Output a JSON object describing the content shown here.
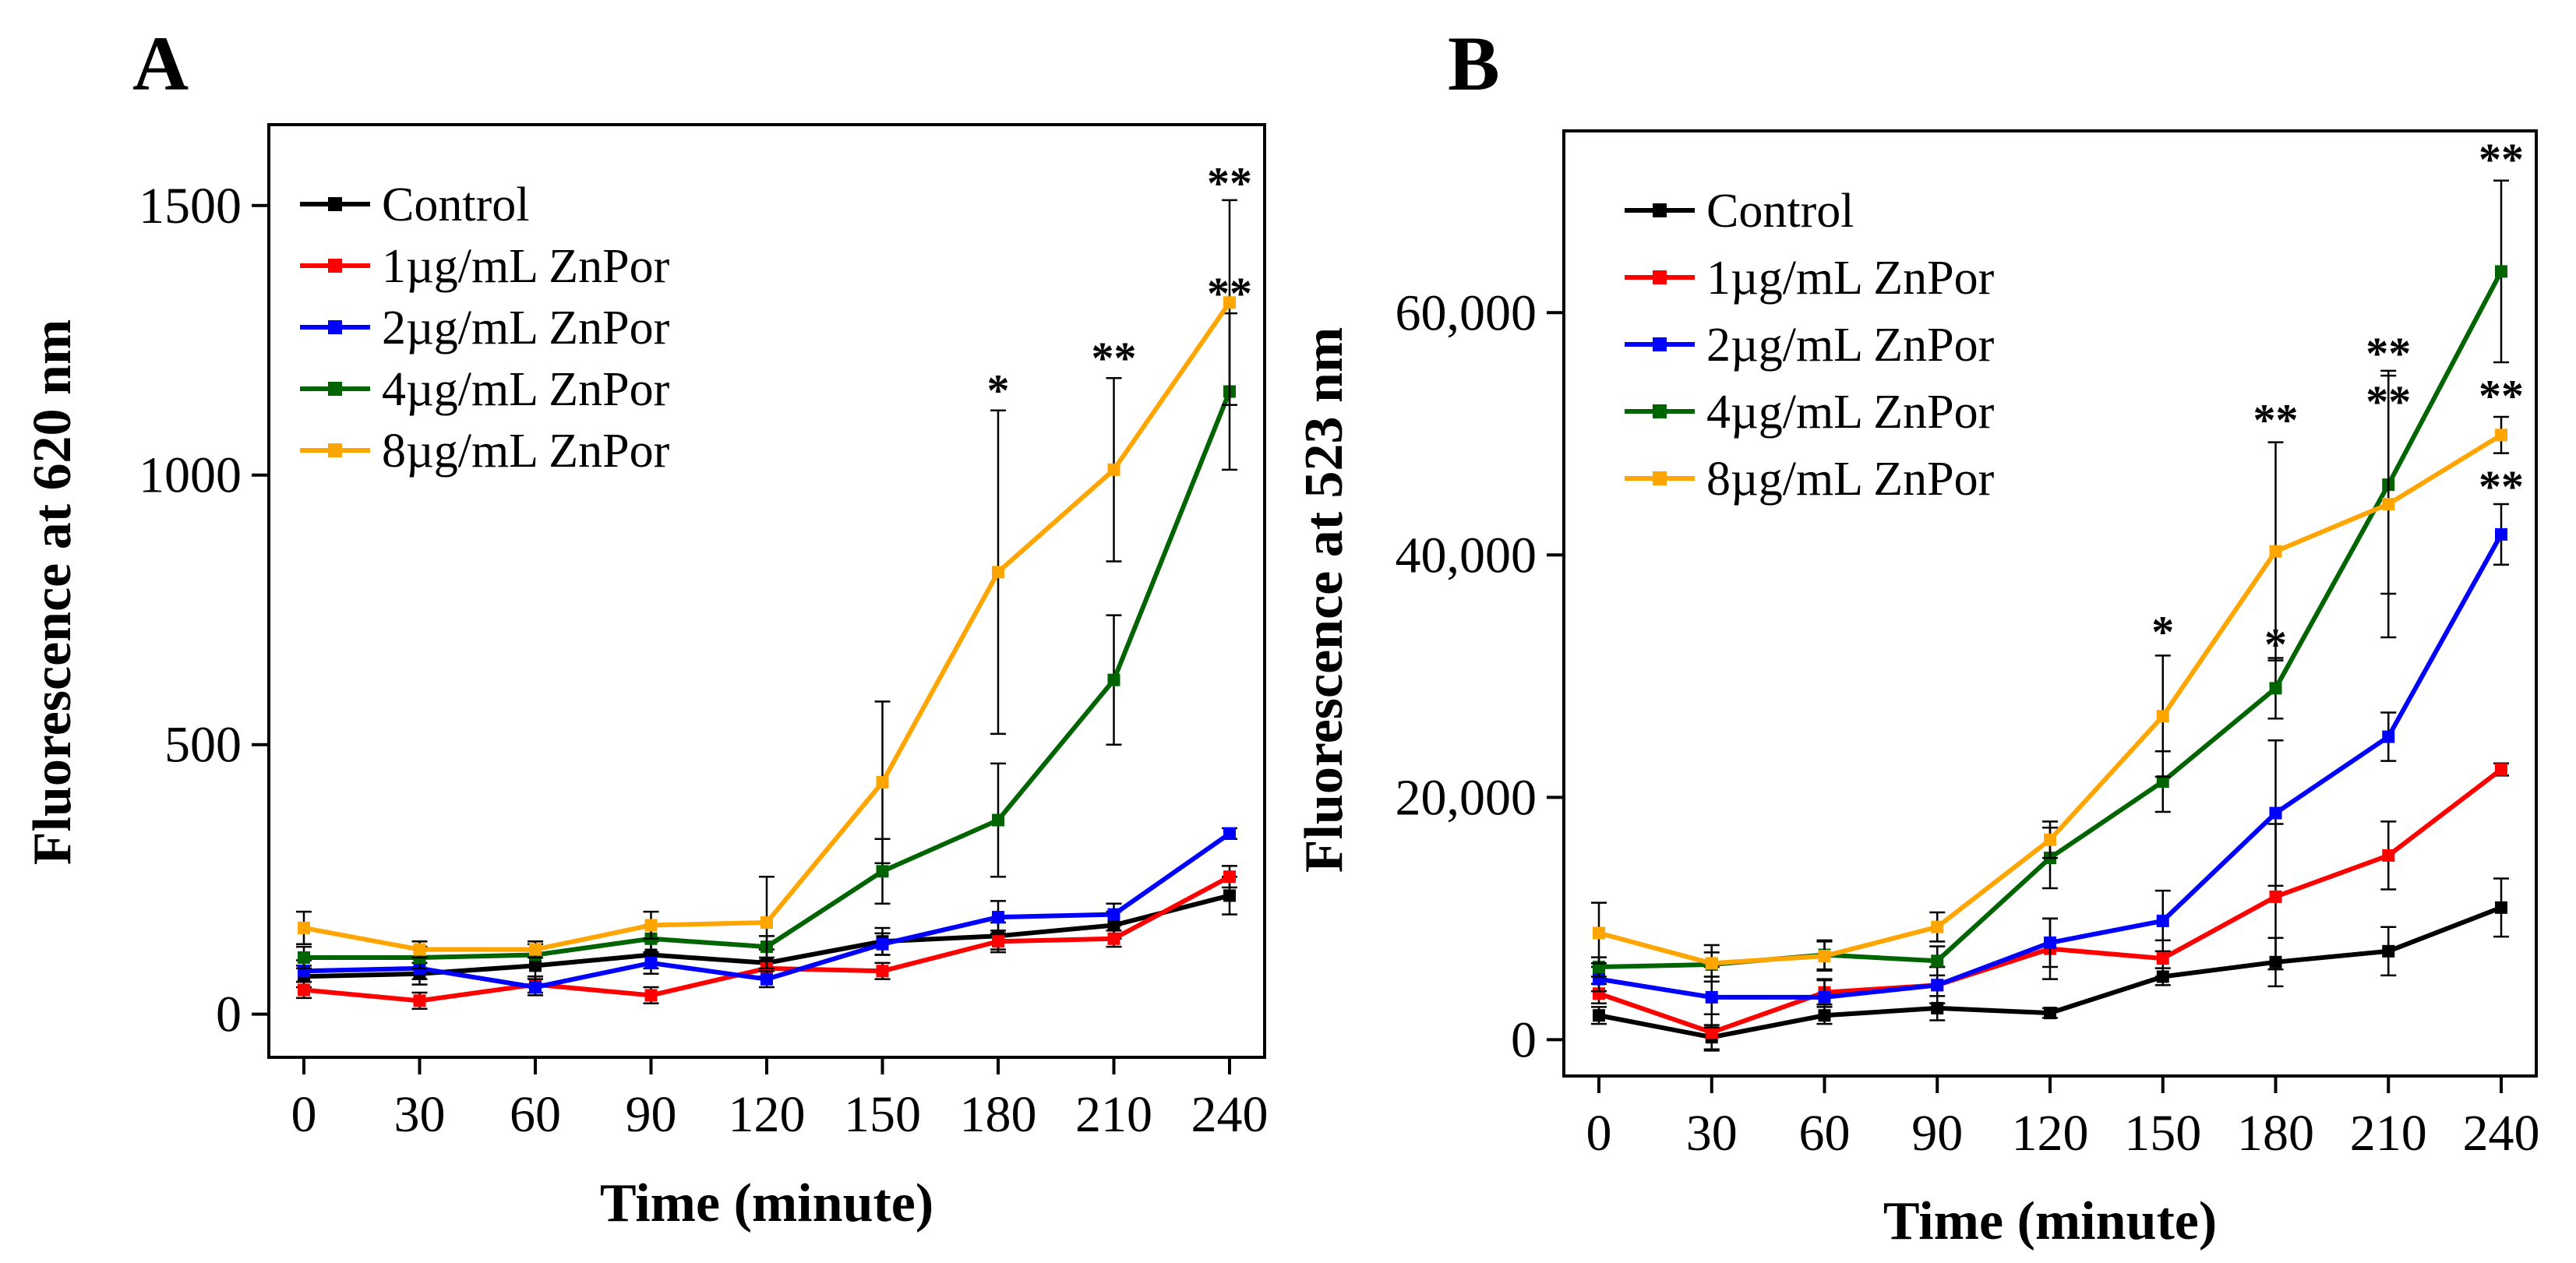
{
  "chart_data": [
    {
      "type": "line",
      "panel_label": "A",
      "title": "",
      "xlabel": "Time (minute)",
      "ylabel": "Fluorescence at 620 nm",
      "x": [
        0,
        30,
        60,
        90,
        120,
        150,
        180,
        210,
        240
      ],
      "x_tick_labels": [
        "0",
        "30",
        "60",
        "90",
        "120",
        "150",
        "180",
        "210",
        "240"
      ],
      "ylim": [
        -80,
        1650
      ],
      "y_ticks": [
        0,
        500,
        1000,
        1500
      ],
      "y_tick_labels": [
        "0",
        "500",
        "1000",
        "1500"
      ],
      "grid": false,
      "legend_position": "top-left",
      "series": [
        {
          "name": "Control",
          "color": "#000000",
          "values": [
            70,
            75,
            90,
            110,
            95,
            135,
            145,
            165,
            220
          ],
          "errors": [
            20,
            20,
            20,
            25,
            25,
            25,
            25,
            25,
            35
          ]
        },
        {
          "name": "1µg/mL ZnPor",
          "color": "#ff0000",
          "values": [
            45,
            25,
            55,
            35,
            85,
            80,
            135,
            140,
            255
          ],
          "errors": [
            15,
            15,
            15,
            15,
            15,
            15,
            20,
            15,
            20
          ]
        },
        {
          "name": "2µg/mL ZnPor",
          "color": "#0000ff",
          "values": [
            80,
            85,
            50,
            95,
            65,
            130,
            180,
            185,
            335
          ],
          "errors": [
            20,
            20,
            15,
            20,
            15,
            20,
            30,
            20,
            10
          ]
        },
        {
          "name": "4µg/mL ZnPor",
          "color": "#006400",
          "values": [
            105,
            105,
            110,
            140,
            125,
            265,
            360,
            620,
            1155
          ],
          "errors": [
            20,
            20,
            20,
            25,
            20,
            60,
            105,
            120,
            145
          ]
        },
        {
          "name": "8µg/mL ZnPor",
          "color": "#ffa500",
          "values": [
            160,
            120,
            120,
            165,
            170,
            430,
            820,
            1010,
            1320
          ],
          "errors": [
            30,
            15,
            15,
            25,
            85,
            150,
            300,
            170,
            190
          ]
        }
      ],
      "annotations": [
        {
          "x": 180,
          "y": 1120,
          "text": "*"
        },
        {
          "x": 210,
          "y": 1180,
          "text": "**"
        },
        {
          "x": 240,
          "y": 1505,
          "text": "**"
        },
        {
          "x": 240,
          "y": 1300,
          "text": "**"
        }
      ]
    },
    {
      "type": "line",
      "panel_label": "B",
      "title": "",
      "xlabel": "Time (minute)",
      "ylabel": "Fluorescence at 523 nm",
      "x": [
        0,
        30,
        60,
        90,
        120,
        150,
        180,
        210,
        240
      ],
      "x_tick_labels": [
        "0",
        "30",
        "60",
        "90",
        "120",
        "150",
        "180",
        "210",
        "240"
      ],
      "ylim": [
        -3000,
        75000
      ],
      "y_ticks": [
        0,
        20000,
        40000,
        60000
      ],
      "y_tick_labels": [
        "0",
        "20,000",
        "40,000",
        "60,000"
      ],
      "grid": false,
      "legend_position": "top-left",
      "series": [
        {
          "name": "Control",
          "color": "#000000",
          "values": [
            2000,
            200,
            2000,
            2600,
            2200,
            5200,
            6400,
            7300,
            10900
          ],
          "errors": [
            700,
            1000,
            700,
            1000,
            400,
            700,
            2000,
            2000,
            2400
          ]
        },
        {
          "name": "1µg/mL ZnPor",
          "color": "#ff0000",
          "values": [
            3800,
            600,
            3900,
            4500,
            7500,
            6700,
            11800,
            15200,
            22300
          ],
          "errors": [
            800,
            1500,
            1000,
            1500,
            2500,
            1500,
            6000,
            2800,
            500
          ]
        },
        {
          "name": "2µg/mL ZnPor",
          "color": "#0000ff",
          "values": [
            5000,
            3500,
            3500,
            4500,
            8000,
            9800,
            18700,
            25000,
            41700
          ],
          "errors": [
            1000,
            2500,
            1500,
            1500,
            2000,
            2500,
            6000,
            2000,
            2500
          ]
        },
        {
          "name": "4µg/mL ZnPor",
          "color": "#006400",
          "values": [
            6000,
            6200,
            7000,
            6500,
            15000,
            21300,
            29000,
            45800,
            63400
          ],
          "errors": [
            800,
            1000,
            1200,
            1200,
            2500,
            2500,
            2500,
            9000,
            7500
          ]
        },
        {
          "name": "8µg/mL ZnPor",
          "color": "#ffa500",
          "values": [
            8800,
            6300,
            6900,
            9300,
            16500,
            26700,
            40300,
            44200,
            49900
          ],
          "errors": [
            2500,
            1500,
            1200,
            1200,
            1500,
            5000,
            9000,
            11000,
            1500
          ]
        }
      ],
      "annotations": [
        {
          "x": 150,
          "y": 32000,
          "text": "*"
        },
        {
          "x": 180,
          "y": 31000,
          "text": "*"
        },
        {
          "x": 180,
          "y": 49500,
          "text": "**"
        },
        {
          "x": 210,
          "y": 55000,
          "text": "**"
        },
        {
          "x": 210,
          "y": 51000,
          "text": "**"
        },
        {
          "x": 240,
          "y": 71000,
          "text": "**"
        },
        {
          "x": 240,
          "y": 51500,
          "text": "**"
        },
        {
          "x": 240,
          "y": 44000,
          "text": "**"
        }
      ]
    }
  ]
}
